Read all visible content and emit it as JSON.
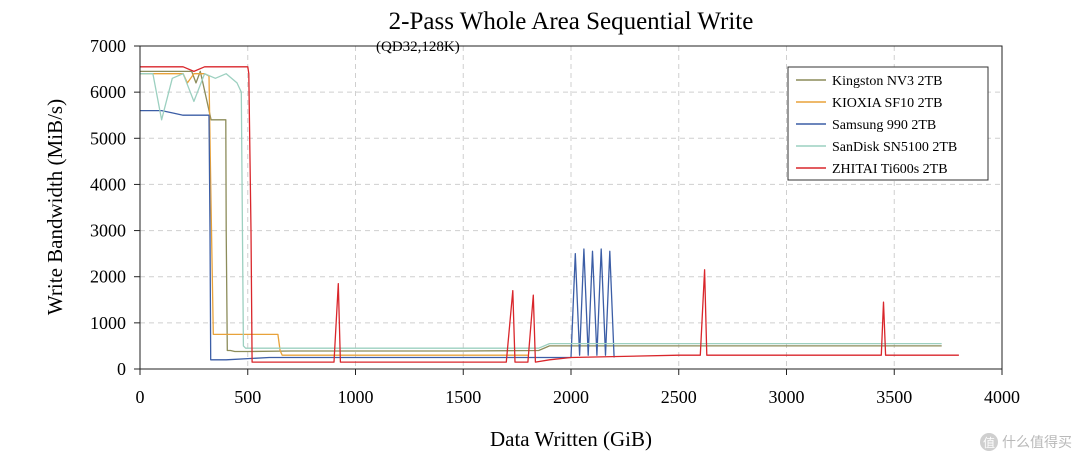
{
  "chart_data": {
    "type": "line",
    "title": "2-Pass Whole Area Sequential Write",
    "subtitle": "(QD32,128K)",
    "xlabel": "Data Written (GiB)",
    "ylabel": "Write Bandwidth (MiB/s)",
    "xlim": [
      0,
      4000
    ],
    "ylim": [
      0,
      7000
    ],
    "x_ticks": [
      0,
      500,
      1000,
      1500,
      2000,
      2500,
      3000,
      3500,
      4000
    ],
    "y_ticks": [
      0,
      1000,
      2000,
      3000,
      4000,
      5000,
      6000,
      7000
    ],
    "grid": true,
    "legend_position": "top-right",
    "series": [
      {
        "name": "Kingston NV3 2TB",
        "color": "#8c8c5a",
        "x": [
          0,
          240,
          260,
          280,
          330,
          345,
          360,
          380,
          398,
          400,
          405,
          420,
          440,
          500,
          700,
          1000,
          1500,
          1850,
          1900,
          2500,
          3000,
          3500,
          3720
        ],
        "y": [
          6450,
          6450,
          6200,
          6450,
          5400,
          5400,
          5400,
          5400,
          5400,
          3000,
          400,
          400,
          380,
          380,
          390,
          390,
          390,
          400,
          500,
          500,
          500,
          500,
          500
        ]
      },
      {
        "name": "KIOXIA SF10 2TB",
        "color": "#e8a23a",
        "x": [
          0,
          200,
          220,
          250,
          300,
          320,
          330,
          340,
          350,
          400,
          500,
          600,
          640,
          650,
          660,
          700,
          1000,
          1500,
          1800
        ],
        "y": [
          6400,
          6400,
          6200,
          6400,
          6400,
          6350,
          3500,
          750,
          750,
          750,
          750,
          750,
          750,
          400,
          300,
          300,
          300,
          300,
          300
        ]
      },
      {
        "name": "Samsung 990 2TB",
        "color": "#3c5ea6",
        "x": [
          0,
          100,
          150,
          200,
          250,
          300,
          320,
          325,
          328,
          335,
          350,
          400,
          600,
          1000,
          1500,
          1800,
          2000,
          2020,
          2040,
          2060,
          2080,
          2100,
          2120,
          2140,
          2160,
          2180,
          2200
        ],
        "y": [
          5600,
          5600,
          5550,
          5500,
          5500,
          5500,
          5500,
          3000,
          200,
          200,
          200,
          200,
          250,
          250,
          250,
          250,
          250,
          2500,
          300,
          2600,
          300,
          2550,
          300,
          2600,
          300,
          2550,
          250
        ]
      },
      {
        "name": "SanDisk SN5100 2TB",
        "color": "#9cd0c0",
        "x": [
          0,
          60,
          100,
          150,
          200,
          250,
          300,
          350,
          400,
          450,
          470,
          480,
          490,
          500,
          700,
          1000,
          1500,
          1850,
          1900,
          2000,
          2500,
          3000,
          3500,
          3720
        ],
        "y": [
          6400,
          6400,
          5400,
          6300,
          6400,
          5800,
          6400,
          6300,
          6400,
          6200,
          6000,
          500,
          450,
          450,
          450,
          450,
          450,
          450,
          550,
          550,
          550,
          550,
          550,
          550
        ]
      },
      {
        "name": "ZHITAI Ti600s 2TB",
        "color": "#d9262b",
        "x": [
          0,
          100,
          200,
          250,
          300,
          400,
          500,
          505,
          515,
          520,
          600,
          900,
          920,
          930,
          1000,
          1500,
          1700,
          1730,
          1740,
          1800,
          1825,
          1835,
          1900,
          2000,
          2500,
          2600,
          2620,
          2630,
          3000,
          3440,
          3450,
          3460,
          3500,
          3800
        ],
        "y": [
          6550,
          6550,
          6550,
          6450,
          6550,
          6550,
          6550,
          6400,
          3000,
          150,
          150,
          150,
          1850,
          150,
          150,
          150,
          150,
          1700,
          150,
          150,
          1600,
          150,
          200,
          250,
          300,
          300,
          2150,
          300,
          300,
          300,
          1450,
          300,
          300,
          300
        ]
      }
    ]
  }
}
